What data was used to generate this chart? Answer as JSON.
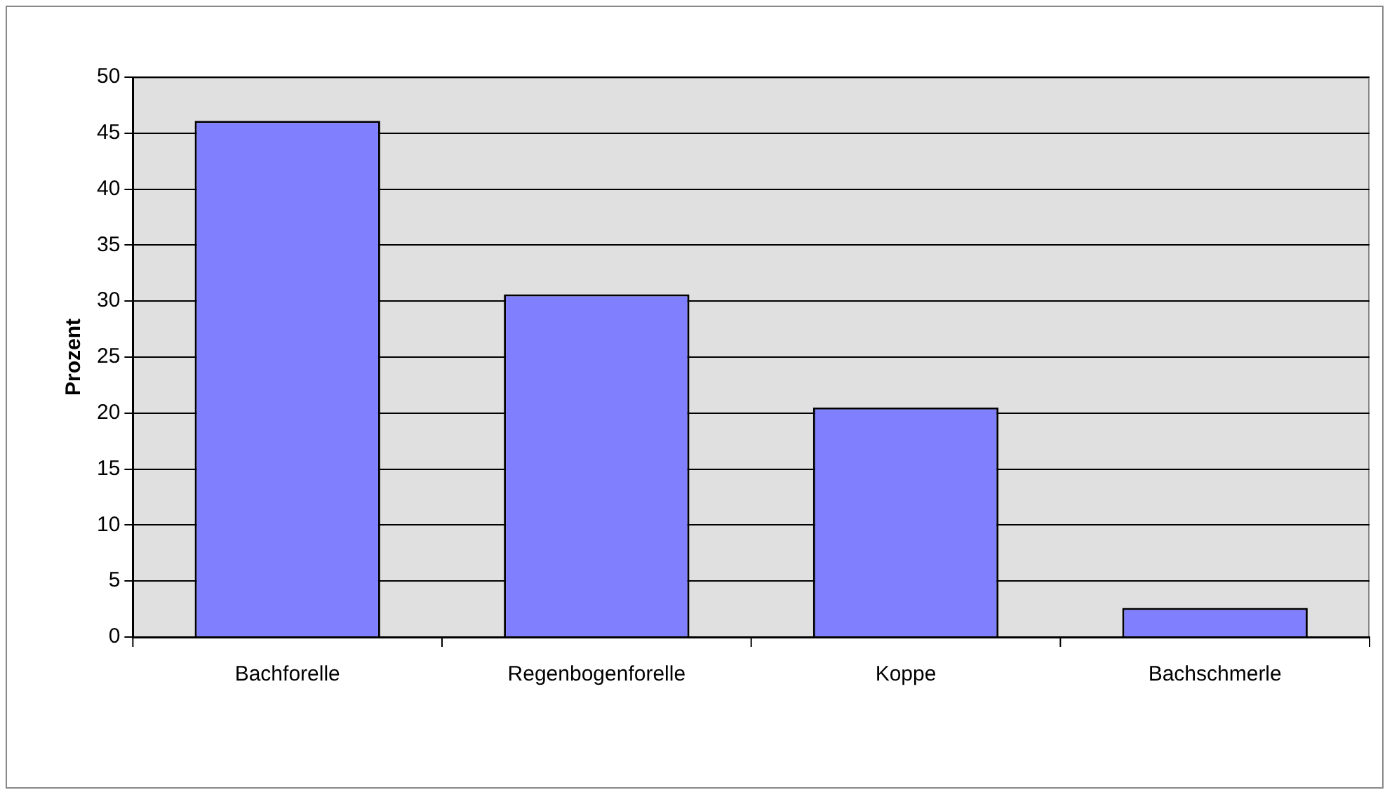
{
  "chart_data": {
    "type": "bar",
    "ylabel": "Prozent",
    "categories": [
      "Bachforelle",
      "Regenbogenforelle",
      "Koppe",
      "Bachschmerle"
    ],
    "values": [
      46.1,
      30.6,
      20.5,
      2.6
    ],
    "color": "#8080ff",
    "ylim": [
      0,
      50
    ],
    "yticks": [
      0,
      5,
      10,
      15,
      20,
      25,
      30,
      35,
      40,
      45,
      50
    ],
    "grid": "y",
    "legend": false
  }
}
